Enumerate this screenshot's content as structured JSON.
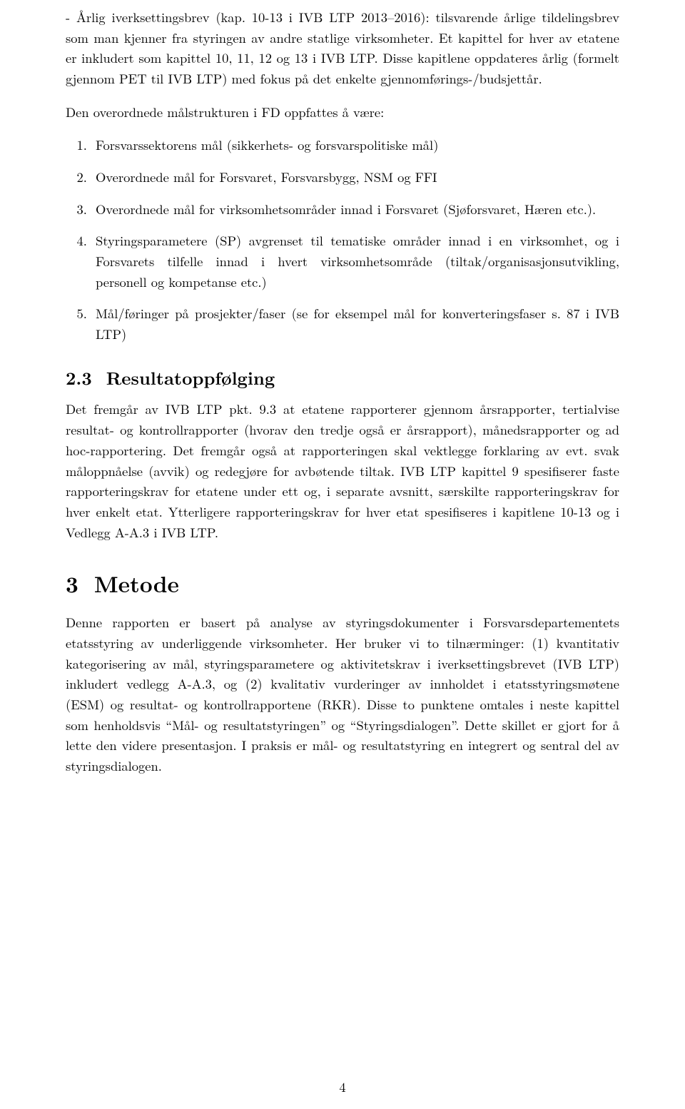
{
  "para_intro": "- Årlig iverksettingsbrev (kap. 10-13 i IVB LTP 2013–2016): tilsvarende årlige tildelingsbrev som man kjenner fra styringen av andre statlige virksomheter. Et kapittel for hver av etatene er inkludert som kapittel 10, 11, 12 og 13 i IVB LTP. Disse kapitlene oppdateres årlig (formelt gjennom PET til IVB LTP) med fokus på det enkelte gjennomførings-/budsjettår.",
  "intro_lead": "Den overordnede målstrukturen i FD oppfattes å være:",
  "list": {
    "i1": "Forsvarssektorens mål (sikkerhets- og forsvarspolitiske mål)",
    "i2": "Overordnede mål for Forsvaret, Forsvarsbygg, NSM og FFI",
    "i3": "Overordnede mål for virksomhetsområder innad i Forsvaret (Sjøforsvaret, Hæren etc.).",
    "i4": "Styringsparametere (SP) avgrenset til tematiske områder innad i en virksomhet, og i Forsvarets tilfelle innad i hvert virksomhetsområde (tiltak/organisasjonsutvikling, personell og kompetanse etc.)",
    "i5": "Mål/føringer på prosjekter/faser (se for eksempel mål for konverteringsfaser s. 87 i IVB LTP)"
  },
  "sec23": {
    "num": "2.3",
    "title": "Resultatoppfølging"
  },
  "para_23": "Det fremgår av IVB LTP pkt. 9.3 at etatene rapporterer gjennom årsrapporter, tertialvise resultat- og kontrollrapporter (hvorav den tredje også er årsrapport), månedsrapporter og ad hoc-rapportering. Det fremgår også at rapporteringen skal vektlegge forklaring av evt. svak måloppnåelse (avvik) og redegjøre for avbøtende tiltak. IVB LTP kapittel 9 spesifiserer faste rapporteringskrav for etatene under ett og, i separate avsnitt, særskilte rapporteringskrav for hver enkelt etat. Ytterligere rapporteringskrav for hver etat spesifiseres i kapitlene 10-13 og i Vedlegg A-A.3 i IVB LTP.",
  "sec3": {
    "num": "3",
    "title": "Metode"
  },
  "para_3": "Denne rapporten er basert på analyse av styringsdokumenter i Forsvarsdepartementets etatsstyring av underliggende virksomheter. Her bruker vi to tilnærminger: (1) kvantitativ kategorisering av mål, styringsparametere og aktivitetskrav i iverksettingsbrevet (IVB LTP) inkludert vedlegg A-A.3, og (2) kvalitativ vurderinger av innholdet i etatsstyringsmøtene (ESM) og resultat- og kontrollrapportene (RKR). Disse to punktene omtales i neste kapittel som henholdsvis “Mål- og resultatstyringen” og “Styringsdialogen”. Dette skillet er gjort for å lette den videre presentasjon. I praksis er mål- og resultatstyring en integrert og sentral del av styringsdialogen.",
  "page_number": "4"
}
